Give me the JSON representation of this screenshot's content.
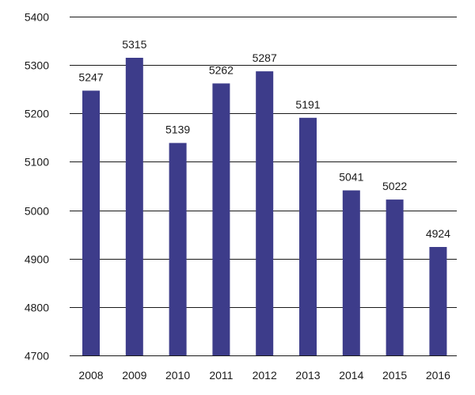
{
  "chart_data": {
    "type": "bar",
    "title": "",
    "xlabel": "",
    "ylabel": "",
    "categories": [
      "2008",
      "2009",
      "2010",
      "2011",
      "2012",
      "2013",
      "2014",
      "2015",
      "2016"
    ],
    "values": [
      5247,
      5315,
      5139,
      5262,
      5287,
      5191,
      5041,
      5022,
      4924
    ],
    "data_labels": [
      "5247",
      "5315",
      "5139",
      "5262",
      "5287",
      "5191",
      "5041",
      "5022",
      "4924"
    ],
    "ylim": [
      4700,
      5400
    ],
    "yticks": [
      4700,
      4800,
      4900,
      5000,
      5100,
      5200,
      5300,
      5400
    ],
    "ytick_labels": [
      "4700",
      "4800",
      "4900",
      "5000",
      "5100",
      "5200",
      "5300",
      "5400"
    ],
    "grid": true,
    "legend": false,
    "colors": {
      "bar": "#3d3c8a",
      "grid": "#1a1a1a",
      "text": "#1a1a1a"
    }
  }
}
